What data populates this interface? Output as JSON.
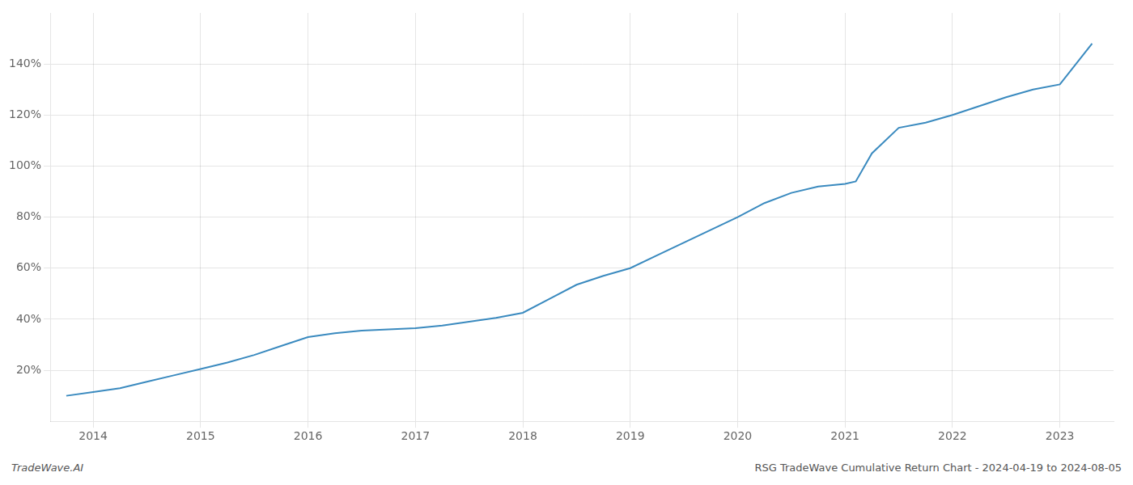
{
  "chart_data": {
    "type": "line",
    "x": [
      2013.75,
      2014.0,
      2014.25,
      2014.5,
      2014.75,
      2015.0,
      2015.25,
      2015.5,
      2015.75,
      2016.0,
      2016.25,
      2016.5,
      2016.75,
      2017.0,
      2017.25,
      2017.5,
      2017.75,
      2018.0,
      2018.25,
      2018.5,
      2018.75,
      2019.0,
      2019.25,
      2019.5,
      2019.75,
      2020.0,
      2020.25,
      2020.5,
      2020.75,
      2021.0,
      2021.1,
      2021.25,
      2021.5,
      2021.75,
      2022.0,
      2022.25,
      2022.5,
      2022.75,
      2023.0,
      2023.15,
      2023.3
    ],
    "values": [
      10.0,
      11.5,
      13.0,
      15.5,
      18.0,
      20.5,
      23.0,
      26.0,
      29.5,
      33.0,
      34.5,
      35.5,
      36.0,
      36.5,
      37.5,
      39.0,
      40.5,
      42.5,
      48.0,
      53.5,
      57.0,
      60.0,
      65.0,
      70.0,
      75.0,
      80.0,
      85.5,
      89.5,
      92.0,
      93.0,
      94.0,
      105.0,
      115.0,
      117.0,
      120.0,
      123.5,
      127.0,
      130.0,
      132.0,
      140.0,
      148.0
    ],
    "color": "#3a8abf",
    "xlim": [
      2013.6,
      2023.5
    ],
    "xticks": [
      2014,
      2015,
      2016,
      2017,
      2018,
      2019,
      2020,
      2021,
      2022,
      2023
    ],
    "ylim": [
      0,
      160
    ],
    "yticks": [
      {
        "value": 20,
        "label": "20%"
      },
      {
        "value": 40,
        "label": "40%"
      },
      {
        "value": 60,
        "label": "60%"
      },
      {
        "value": 80,
        "label": "80%"
      },
      {
        "value": 100,
        "label": "100%"
      },
      {
        "value": 120,
        "label": "120%"
      },
      {
        "value": 140,
        "label": "140%"
      }
    ],
    "grid": true,
    "annotations": [
      "TradeWave.AI",
      "RSG TradeWave Cumulative Return Chart - 2024-04-19 to 2024-08-05"
    ]
  }
}
